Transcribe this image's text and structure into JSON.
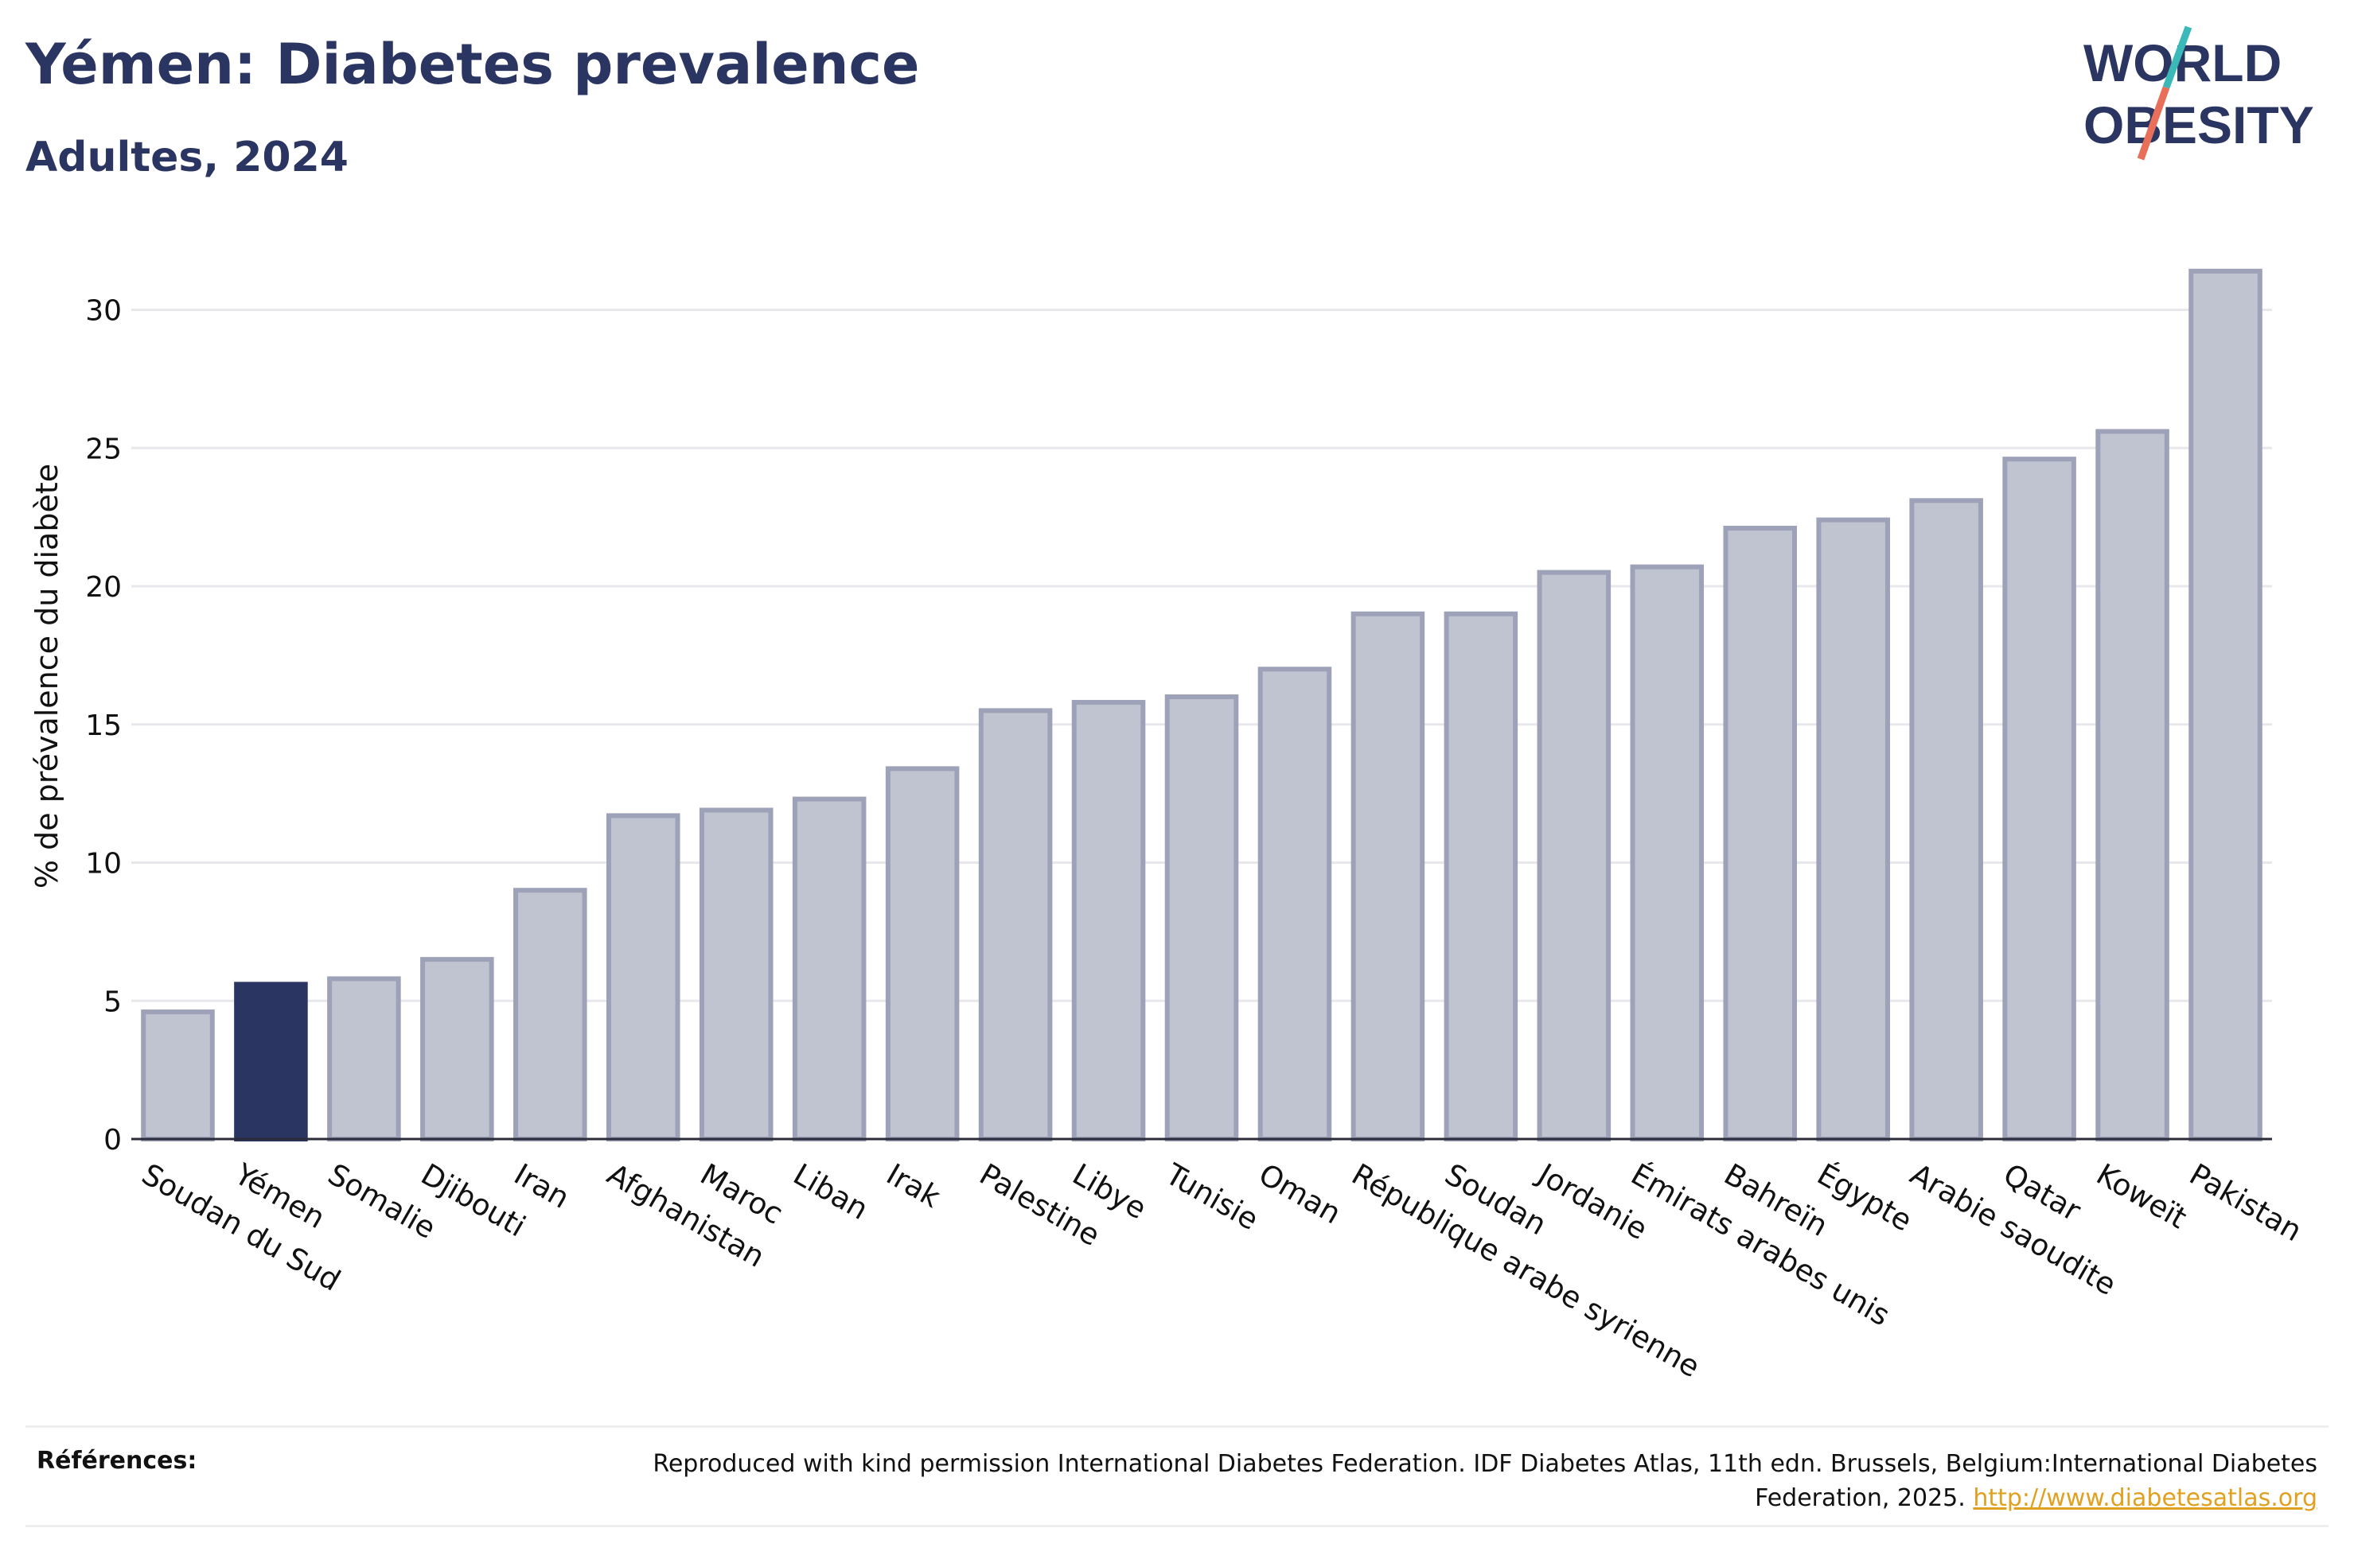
{
  "header": {
    "title": "Yémen: Diabetes prevalence",
    "subtitle": "Adultes, 2024"
  },
  "logo": {
    "line1": "WORLD",
    "line2": "OBESITY",
    "colors": {
      "text": "#2b3561",
      "slash_top": "#3bb8b8",
      "slash_bottom": "#e8705a"
    }
  },
  "chart_data": {
    "type": "bar",
    "title": "Yémen: Diabetes prevalence",
    "subtitle": "Adultes, 2024",
    "ylabel": "% de prévalence du diabète",
    "xlabel": "",
    "ylim": [
      0,
      32
    ],
    "yticks": [
      0,
      5,
      10,
      15,
      20,
      25,
      30
    ],
    "grid": true,
    "highlight": "Yémen",
    "colors": {
      "bar": "#c0c3d0",
      "bar_edge": "#9da2b8",
      "highlight": "#2b3561"
    },
    "categories": [
      "Soudan du Sud",
      "Yémen",
      "Somalie",
      "Djibouti",
      "Iran",
      "Afghanistan",
      "Maroc",
      "Liban",
      "Irak",
      "Palestine",
      "Libye",
      "Tunisie",
      "Oman",
      "République arabe syrienne",
      "Soudan",
      "Jordanie",
      "Émirats arabes unis",
      "Bahreïn",
      "Égypte",
      "Arabie saoudite",
      "Qatar",
      "Koweït",
      "Pakistan"
    ],
    "values": [
      4.6,
      5.6,
      5.8,
      6.5,
      9.0,
      11.7,
      11.9,
      12.3,
      13.4,
      15.5,
      15.8,
      16.0,
      17.0,
      19.0,
      19.0,
      20.5,
      20.7,
      22.1,
      22.4,
      23.1,
      24.6,
      25.6,
      31.4
    ]
  },
  "footer": {
    "label": "Références:",
    "text": "Reproduced with kind permission International Diabetes Federation. IDF Diabetes Atlas, 11th edn. Brussels, Belgium:International Diabetes Federation, 2025.",
    "link": "http://www.diabetesatlas.org"
  }
}
